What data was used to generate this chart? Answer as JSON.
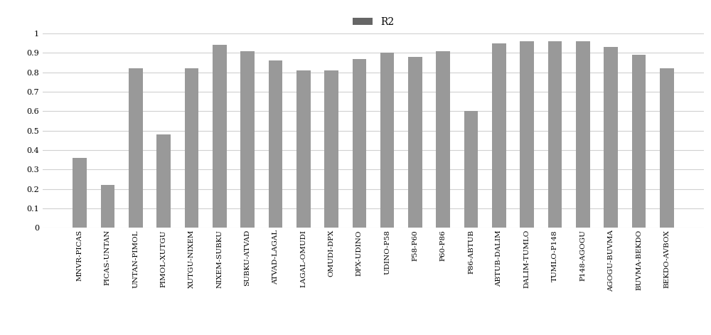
{
  "categories": [
    "MNVR-PICAS",
    "PICAS-UNTAN",
    "UNTAN-PIMOL",
    "PIMOL-XUTGU",
    "XUTGU-NIXEM",
    "NIXEM-SUBKU",
    "SUBKU-ATVAD",
    "ATVAD-LAGAL",
    "LAGAL-OMUDI",
    "OMUDI-DPX",
    "DPX-UDINO",
    "UDINO-P58",
    "P58-P60",
    "P60-P86",
    "P86-ABTUB",
    "ABTUB-DALIM",
    "DALIM-TUMLO",
    "TUMLO-P148",
    "P148-AGOGU",
    "AGOGU-BUVMA",
    "BUVMA-BEKDO",
    "BEKDO-AVBOX"
  ],
  "values": [
    0.36,
    0.22,
    0.82,
    0.48,
    0.82,
    0.94,
    0.91,
    0.86,
    0.81,
    0.81,
    0.87,
    0.9,
    0.88,
    0.91,
    0.6,
    0.95,
    0.96,
    0.96,
    0.96,
    0.93,
    0.89,
    0.82
  ],
  "bar_color": "#999999",
  "legend_label": "R2",
  "legend_color": "#666666",
  "ylim": [
    0,
    1.0
  ],
  "yticks": [
    0,
    0.1,
    0.2,
    0.3,
    0.4,
    0.5,
    0.6,
    0.7,
    0.8,
    0.9,
    1
  ],
  "ytick_labels": [
    "0",
    "0.1",
    "0.2",
    "0.3",
    "0.4",
    "0.5",
    "0.6",
    "0.7",
    "0.8",
    "0.9",
    "1"
  ],
  "background_color": "#ffffff",
  "grid_color": "#d0d0d0",
  "tick_fontsize": 8,
  "label_fontsize": 7.5
}
